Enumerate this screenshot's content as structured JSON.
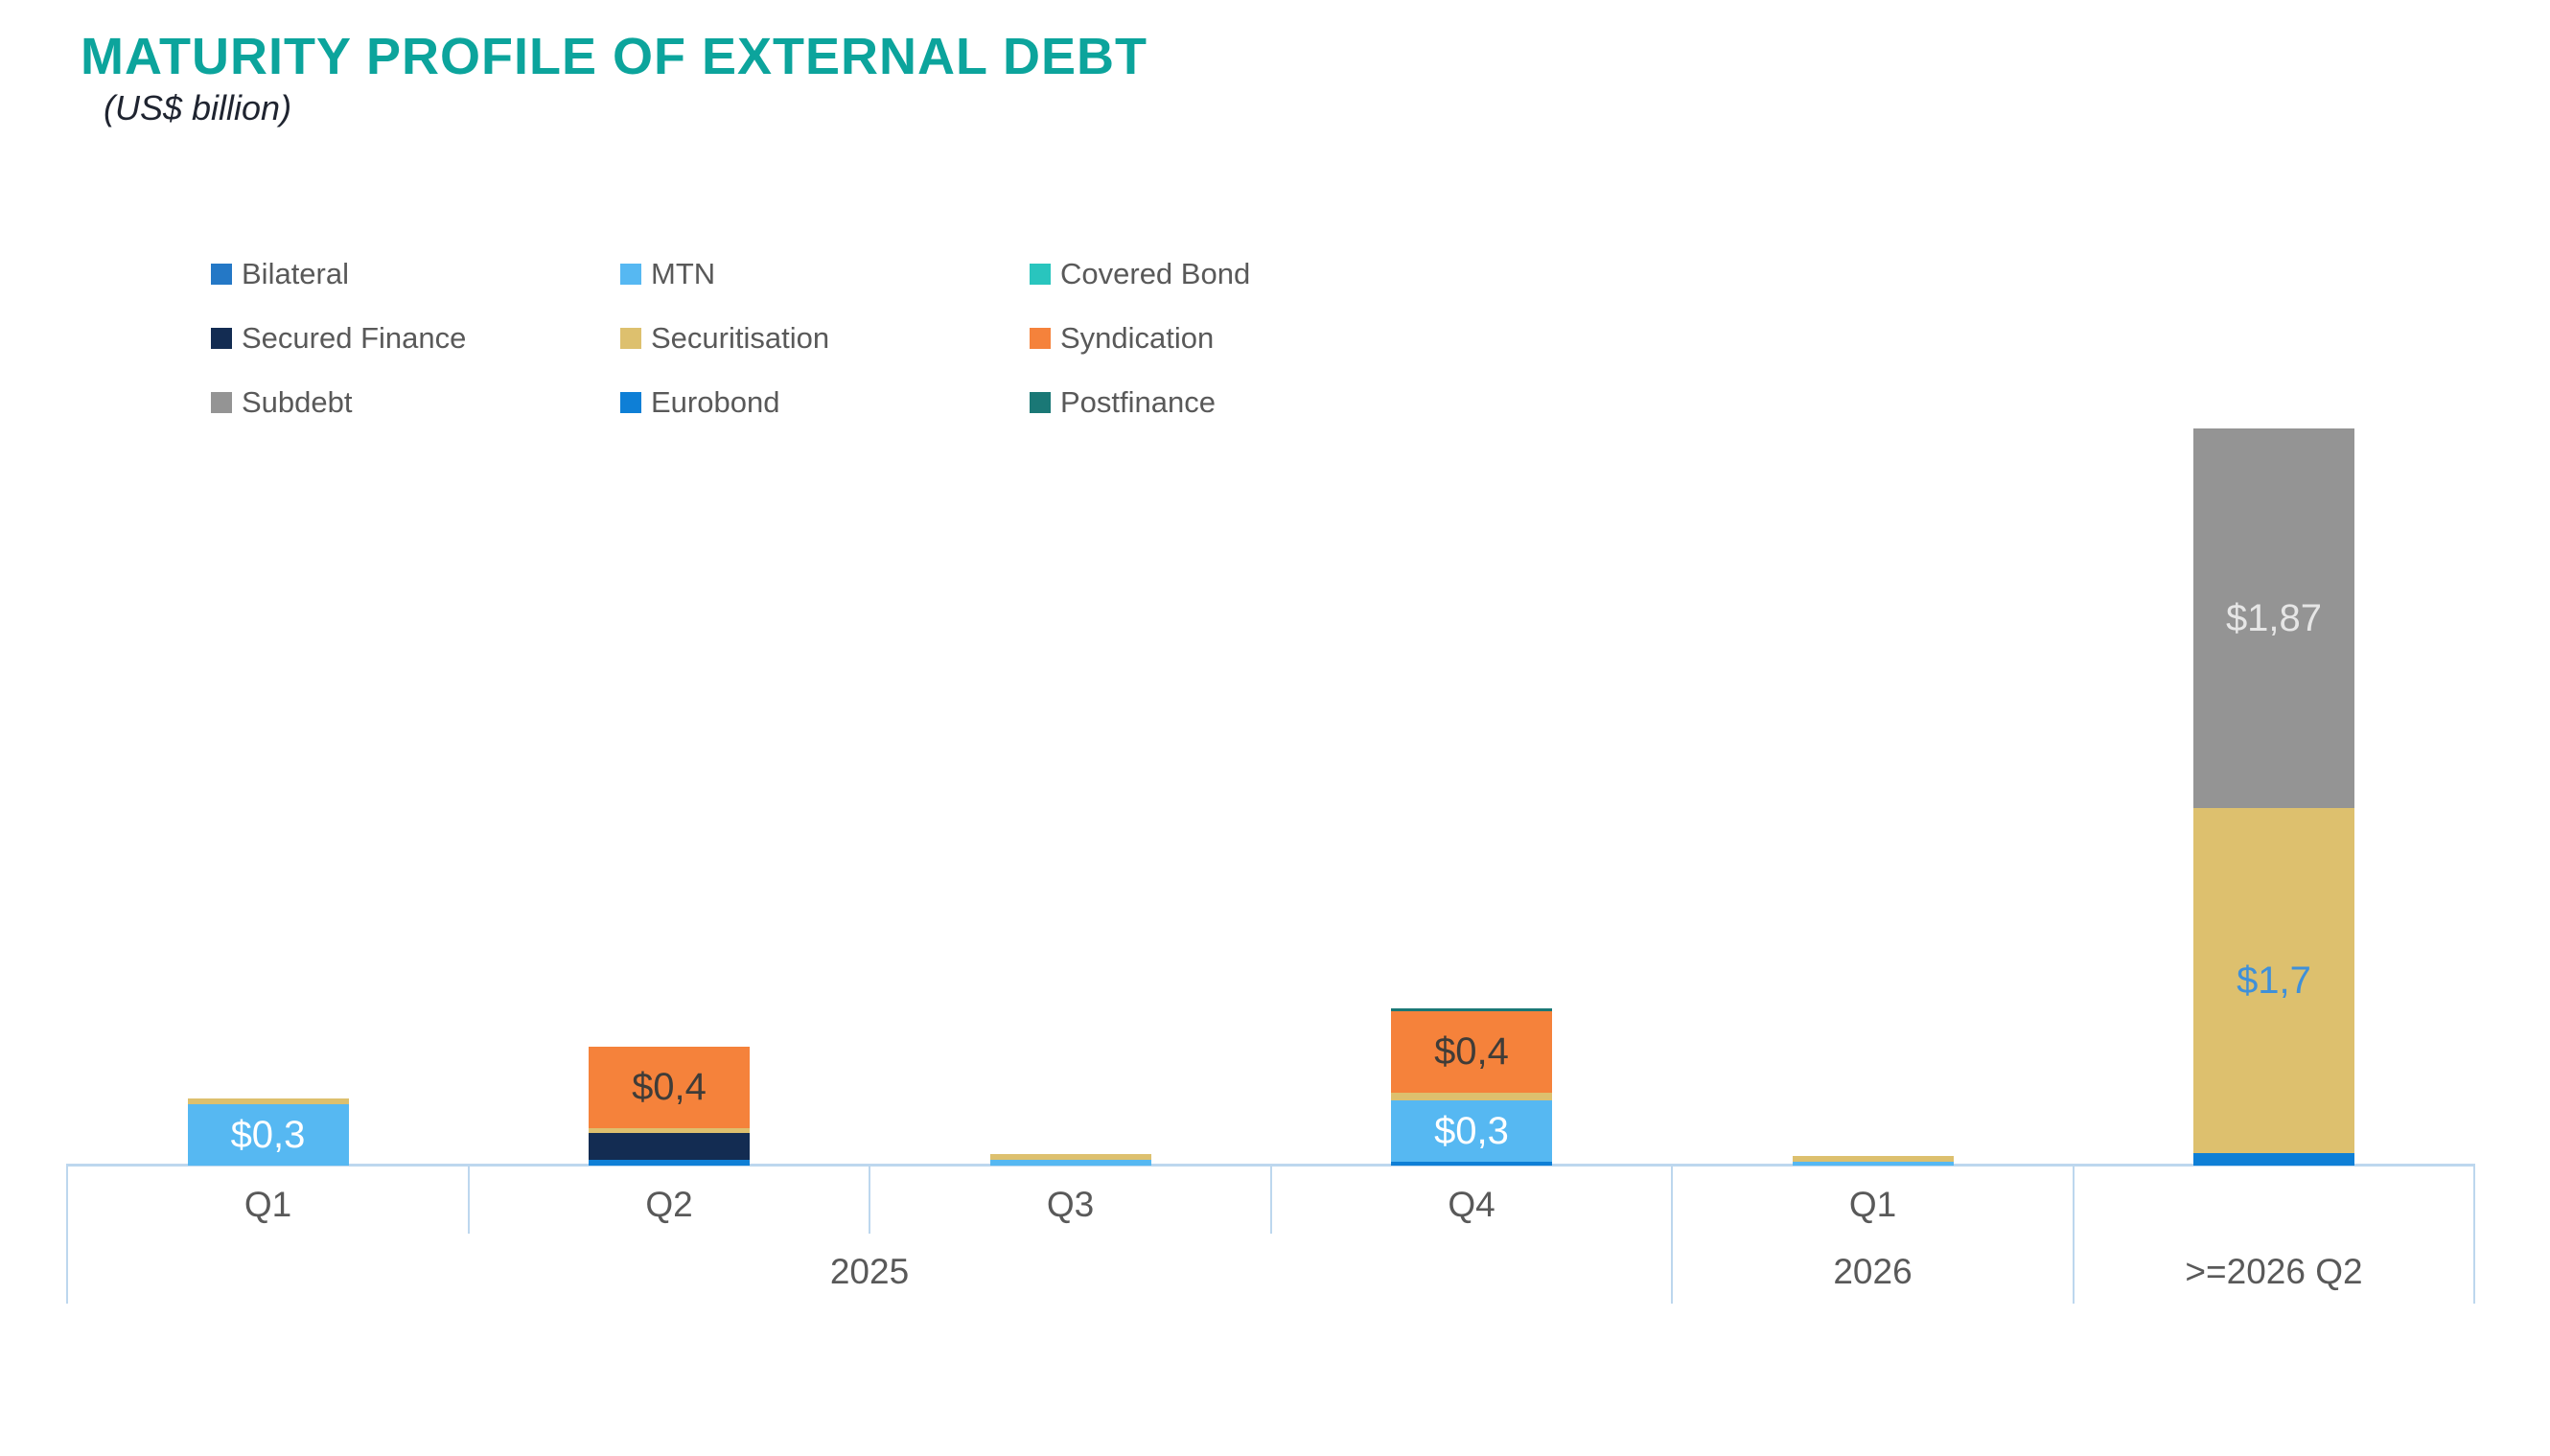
{
  "title": "MATURITY PROFILE OF EXTERNAL DEBT",
  "subtitle": "(US$ billion)",
  "colors": {
    "title_teal": "#0CA49C",
    "axis_light_blue": "#BDD7EE",
    "label_gray": "#595959",
    "bilateral": "#2478C6",
    "mtn": "#56B8F2",
    "covered_bond": "#29C5BE",
    "secured_finance": "#132C52",
    "securitisation": "#DDC06E",
    "syndication": "#F5823B",
    "subdebt": "#949494",
    "eurobond": "#0E7FD6",
    "postfinance": "#1A7876"
  },
  "legend": {
    "items": [
      {
        "key": "bilateral",
        "label": "Bilateral"
      },
      {
        "key": "mtn",
        "label": "MTN"
      },
      {
        "key": "covered_bond",
        "label": "Covered Bond"
      },
      {
        "key": "secured_finance",
        "label": "Secured Finance"
      },
      {
        "key": "securitisation",
        "label": "Securitisation"
      },
      {
        "key": "syndication",
        "label": "Syndication"
      },
      {
        "key": "subdebt",
        "label": "Subdebt"
      },
      {
        "key": "eurobond",
        "label": "Eurobond"
      },
      {
        "key": "postfinance",
        "label": "Postfinance"
      }
    ]
  },
  "chart_data": {
    "type": "bar",
    "variant": "stacked",
    "title": "MATURITY PROFILE OF EXTERNAL DEBT",
    "unit": "US$ billion",
    "xlabel": "",
    "ylabel": "",
    "grid": false,
    "value_axis_visible": false,
    "legend_position": "top-left",
    "pixels_per_unit": 212,
    "series_order": [
      "Bilateral",
      "MTN",
      "Covered Bond",
      "Secured Finance",
      "Securitisation",
      "Syndication",
      "Subdebt",
      "Eurobond",
      "Postfinance"
    ],
    "categories": [
      {
        "id": "2025-q1",
        "quarter": "Q1",
        "segments": [
          {
            "series": "MTN",
            "value": 0.3,
            "label": "$0,3",
            "label_color": "#FFFFFF"
          },
          {
            "series": "Securitisation",
            "value": 0.03
          }
        ]
      },
      {
        "id": "2025-q2",
        "quarter": "Q2",
        "segments": [
          {
            "series": "Eurobond",
            "value": 0.03
          },
          {
            "series": "Secured Finance",
            "value": 0.13
          },
          {
            "series": "Securitisation",
            "value": 0.025
          },
          {
            "series": "Syndication",
            "value": 0.4,
            "label": "$0,4",
            "label_color": "#3F3C38"
          }
        ]
      },
      {
        "id": "2025-q3",
        "quarter": "Q3",
        "segments": [
          {
            "series": "MTN",
            "value": 0.03
          },
          {
            "series": "Securitisation",
            "value": 0.03
          }
        ]
      },
      {
        "id": "2025-q4",
        "quarter": "Q4",
        "segments": [
          {
            "series": "Eurobond",
            "value": 0.02
          },
          {
            "series": "MTN",
            "value": 0.3,
            "label": "$0,3",
            "label_color": "#FFFFFF"
          },
          {
            "series": "Securitisation",
            "value": 0.04
          },
          {
            "series": "Syndication",
            "value": 0.4,
            "label": "$0,4",
            "label_color": "#3F3C38"
          },
          {
            "series": "Postfinance",
            "value": 0.015
          }
        ]
      },
      {
        "id": "2026-q1",
        "quarter": "Q1",
        "segments": [
          {
            "series": "MTN",
            "value": 0.02
          },
          {
            "series": "Securitisation",
            "value": 0.03
          }
        ]
      },
      {
        "id": "2026q2-plus",
        "quarter": "",
        "segments": [
          {
            "series": "Eurobond",
            "value": 0.06
          },
          {
            "series": "Securitisation",
            "value": 1.7,
            "label": "$1,7",
            "label_color": "#3F90D9"
          },
          {
            "series": "Subdebt",
            "value": 1.87,
            "label": "$1,87",
            "label_color": "#E6E6E6"
          }
        ]
      }
    ],
    "year_groups": [
      {
        "label": "2025",
        "category_span": [
          0,
          3
        ]
      },
      {
        "label": "2026",
        "category_span": [
          4,
          4
        ]
      },
      {
        "label": ">=2026 Q2",
        "category_span": [
          5,
          5
        ]
      }
    ]
  }
}
